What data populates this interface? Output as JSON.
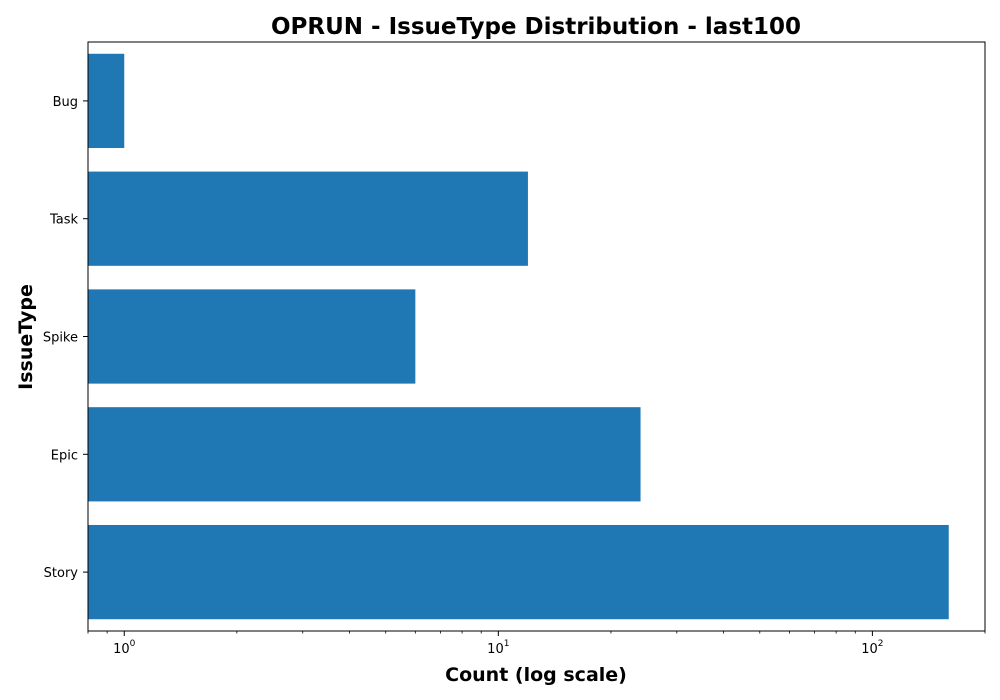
{
  "chart_data": {
    "type": "bar",
    "orientation": "horizontal",
    "title": "OPRUN - IssueType Distribution - last100",
    "xlabel": "Count (log scale)",
    "ylabel": "IssueType",
    "x_scale": "log",
    "xlim": [
      0.8,
      200
    ],
    "categories": [
      "Bug",
      "Task",
      "Spike",
      "Epic",
      "Story"
    ],
    "values": [
      1,
      12,
      6,
      24,
      160
    ],
    "x_ticks": [
      {
        "value": 1,
        "base": "10",
        "exp": "0"
      },
      {
        "value": 10,
        "base": "10",
        "exp": "1"
      },
      {
        "value": 100,
        "base": "10",
        "exp": "2"
      }
    ],
    "bar_color": "#1f77b4",
    "grid": false,
    "legend": "none"
  }
}
